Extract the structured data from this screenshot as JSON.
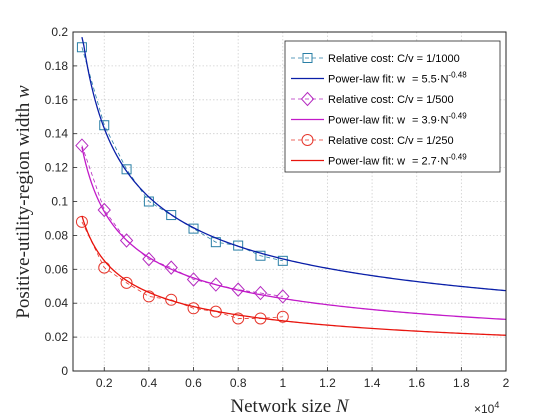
{
  "chart_data": {
    "type": "line",
    "xlabel_text": "Network size",
    "xlabel_var": "N",
    "ylabel_text": "Positive-utility-region width",
    "ylabel_var": "w",
    "x_exponent_base": "×10",
    "x_exponent_power": "4",
    "xlim": [
      0.06,
      2.0
    ],
    "ylim": [
      0,
      0.2
    ],
    "x_ticks": [
      0.2,
      0.4,
      0.6,
      0.8,
      1.0,
      1.2,
      1.4,
      1.6,
      1.8,
      2.0
    ],
    "x_tick_labels": [
      "0.2",
      "0.4",
      "0.6",
      "0.8",
      "1",
      "1.2",
      "1.4",
      "1.6",
      "1.8",
      "2"
    ],
    "y_ticks": [
      0,
      0.02,
      0.04,
      0.06,
      0.08,
      0.1,
      0.12,
      0.14,
      0.16,
      0.18,
      0.2
    ],
    "y_tick_labels": [
      "0",
      "0.02",
      "0.04",
      "0.06",
      "0.08",
      "0.1",
      "0.12",
      "0.14",
      "0.16",
      "0.18",
      "0.2"
    ],
    "grid": true,
    "legend_position": "top-right",
    "series": [
      {
        "kind": "markers",
        "name": "Relative cost: C/v = 1/1000",
        "marker": "square",
        "color": "#2a7fa6",
        "x": [
          0.1,
          0.2,
          0.3,
          0.4,
          0.5,
          0.6,
          0.7,
          0.8,
          0.9,
          1.0
        ],
        "y": [
          0.191,
          0.145,
          0.119,
          0.1,
          0.092,
          0.084,
          0.076,
          0.074,
          0.068,
          0.065
        ]
      },
      {
        "kind": "fit",
        "name": "Power-law fit: w",
        "formula_eq": "= 5.5·N",
        "formula_exp": "-0.48",
        "coef": 5.5,
        "exponent": -0.48,
        "color": "#0a1fa8"
      },
      {
        "kind": "markers",
        "name": "Relative cost: C/v = 1/500",
        "marker": "diamond",
        "color": "#b52bc0",
        "x": [
          0.1,
          0.2,
          0.3,
          0.4,
          0.5,
          0.6,
          0.7,
          0.8,
          0.9,
          1.0
        ],
        "y": [
          0.133,
          0.095,
          0.077,
          0.066,
          0.061,
          0.054,
          0.051,
          0.048,
          0.046,
          0.044
        ]
      },
      {
        "kind": "fit",
        "name": "Power-law fit: w",
        "formula_eq": "= 3.9·N",
        "formula_exp": "-0.49",
        "coef": 3.9,
        "exponent": -0.49,
        "color": "#c21ac9"
      },
      {
        "kind": "markers",
        "name": "Relative cost: C/v = 1/250",
        "marker": "circle",
        "color": "#e6382e",
        "x": [
          0.1,
          0.2,
          0.3,
          0.4,
          0.5,
          0.6,
          0.7,
          0.8,
          0.9,
          1.0
        ],
        "y": [
          0.088,
          0.061,
          0.052,
          0.044,
          0.042,
          0.037,
          0.035,
          0.031,
          0.031,
          0.032
        ]
      },
      {
        "kind": "fit",
        "name": "Power-law fit: w",
        "formula_eq": "= 2.7·N",
        "formula_exp": "-0.49",
        "coef": 2.7,
        "exponent": -0.49,
        "color": "#e8150e"
      }
    ]
  }
}
